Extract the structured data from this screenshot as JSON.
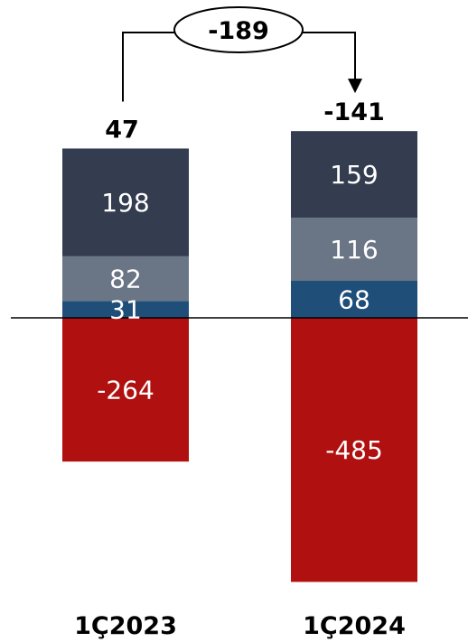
{
  "chart_data": {
    "type": "bar",
    "stacked": true,
    "categories": [
      "1Ç2023",
      "1Ç2024"
    ],
    "series": [
      {
        "values": [
          31,
          68
        ],
        "color": "#1f4e79"
      },
      {
        "values": [
          82,
          116
        ],
        "color": "#6a7585"
      },
      {
        "values": [
          198,
          159
        ],
        "color": "#333d4f"
      },
      {
        "values": [
          -264,
          -485
        ],
        "color": "#b01010"
      }
    ],
    "totals": [
      47,
      -141
    ],
    "difference": {
      "label": "-189",
      "from": "1Ç2023",
      "to": "1Ç2024"
    },
    "value_range": [
      -485,
      311
    ],
    "grid": false,
    "legend": "none"
  }
}
